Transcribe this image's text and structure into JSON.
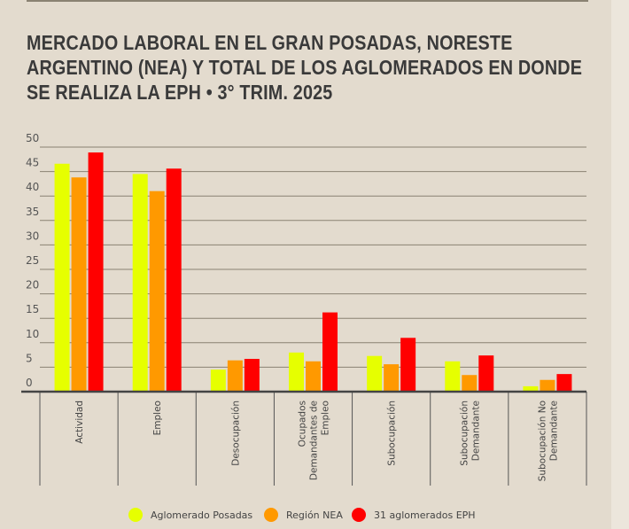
{
  "title": "MERCADO LABORAL EN EL GRAN POSADAS, NORESTE ARGENTINO (NEA) Y TOTAL DE LOS AGLOMERADOS EN DONDE SE REALIZA LA EPH • 3° TRIM. 2025",
  "chart_data": {
    "type": "bar",
    "title": "MERCADO LABORAL EN EL GRAN POSADAS, NORESTE ARGENTINO (NEA) Y TOTAL DE LOS AGLOMERADOS EN DONDE SE REALIZA LA EPH • 3° TRIM. 2025",
    "categories": [
      [
        "Actividad"
      ],
      [
        "Empleo"
      ],
      [
        "Desocupación"
      ],
      [
        "Ocupados",
        "Demandantes de",
        "Empleo"
      ],
      [
        "Subocupación"
      ],
      [
        "Subocupación",
        "Demandante"
      ],
      [
        "Subocupación No",
        "Demandante"
      ]
    ],
    "series": [
      {
        "name": "Aglomerado Posadas",
        "color": "#e6ff00",
        "values": [
          46.6,
          44.5,
          4.5,
          8.0,
          7.3,
          6.2,
          1.1
        ]
      },
      {
        "name": "Región NEA",
        "color": "#ff9900",
        "values": [
          43.8,
          41.0,
          6.4,
          6.2,
          5.6,
          3.4,
          2.4
        ]
      },
      {
        "name": "31 aglomerados EPH",
        "color": "#ff0000",
        "values": [
          48.9,
          45.6,
          6.7,
          16.2,
          11.0,
          7.4,
          3.6
        ]
      }
    ],
    "yticks": [
      0,
      5,
      10,
      15,
      20,
      25,
      30,
      35,
      40,
      45,
      50
    ],
    "ylim": [
      0,
      50
    ],
    "grid": true,
    "legend": "bottom"
  }
}
